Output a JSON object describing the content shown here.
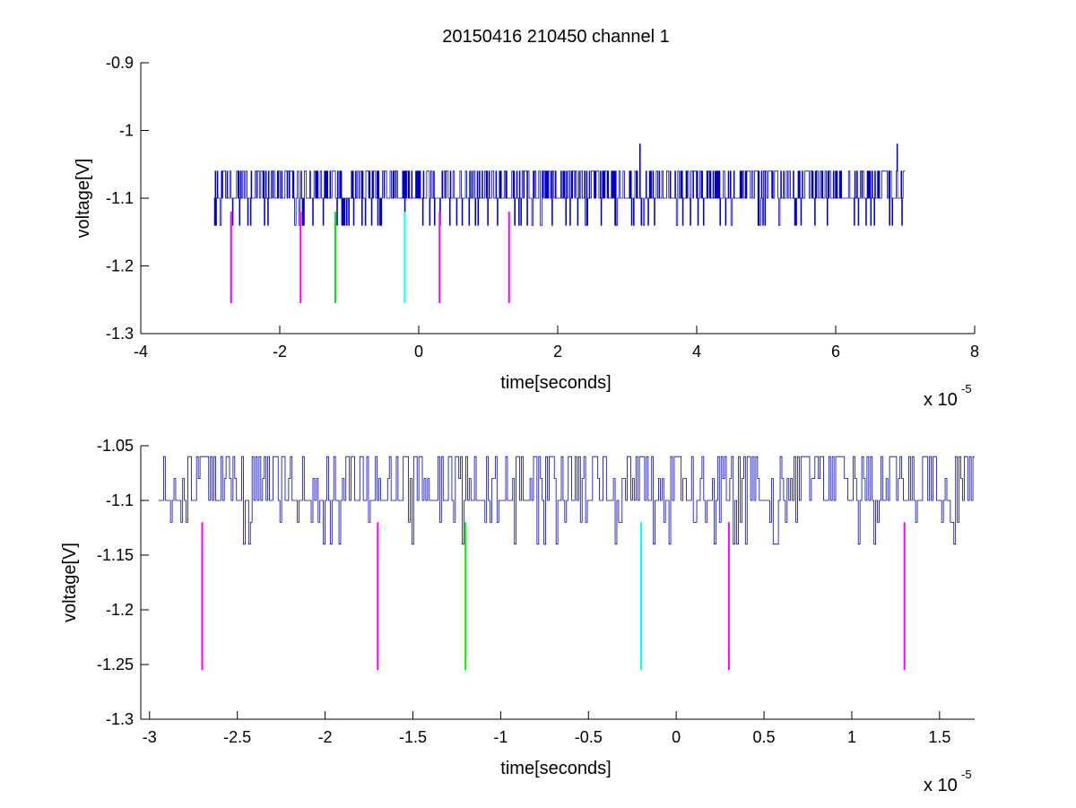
{
  "figure": {
    "title": "20150416 210450 channel 1"
  },
  "chart_data": [
    {
      "type": "line",
      "name": "top-panel",
      "title": "20150416 210450 channel 1",
      "xlabel": "time[seconds]",
      "ylabel": "voltage[V]",
      "x_multiplier_label": "x 10",
      "x_multiplier_exponent": "-5",
      "xlim": [
        -4e-05,
        8e-05
      ],
      "ylim": [
        -1.3,
        -0.9
      ],
      "x_ticks": [
        -4,
        -2,
        0,
        2,
        4,
        6,
        8
      ],
      "x_tick_labels": [
        "-4",
        "-2",
        "0",
        "2",
        "4",
        "6",
        "8"
      ],
      "y_ticks": [
        -1.3,
        -1.2,
        -1.1,
        -1.0,
        -0.9
      ],
      "y_tick_labels": [
        "-1.3",
        "-1.2",
        "-1.1",
        "-1",
        "-0.9"
      ],
      "signal": {
        "color": "#0000cc",
        "x_start": -2.95e-05,
        "x_end": 7e-05,
        "samples": 1000,
        "levels": [
          -1.06,
          -1.1,
          -1.14
        ],
        "spikes": [
          {
            "x": 3.18e-05,
            "y": -1.02
          },
          {
            "x": 6.88e-05,
            "y": -1.02
          }
        ]
      },
      "markers": [
        {
          "x": -2.7e-05,
          "y_top": -1.12,
          "y_bottom": -1.255,
          "color": "#ff00ff"
        },
        {
          "x": -1.7e-05,
          "y_top": -1.12,
          "y_bottom": -1.255,
          "color": "#ff00ff"
        },
        {
          "x": -1.2e-05,
          "y_top": -1.12,
          "y_bottom": -1.255,
          "color": "#00ee00"
        },
        {
          "x": -2e-06,
          "y_top": -1.12,
          "y_bottom": -1.255,
          "color": "#00ffff"
        },
        {
          "x": 3e-06,
          "y_top": -1.12,
          "y_bottom": -1.255,
          "color": "#ff00ff"
        },
        {
          "x": 1.3e-05,
          "y_top": -1.12,
          "y_bottom": -1.255,
          "color": "#ff00ff"
        }
      ]
    },
    {
      "type": "line",
      "name": "bottom-panel",
      "title": "",
      "xlabel": "time[seconds]",
      "ylabel": "voltage[V]",
      "x_multiplier_label": "x 10",
      "x_multiplier_exponent": "-5",
      "xlim": [
        -3.05e-05,
        1.7e-05
      ],
      "ylim": [
        -1.3,
        -1.05
      ],
      "x_ticks": [
        -3,
        -2.5,
        -2,
        -1.5,
        -1,
        -0.5,
        0,
        0.5,
        1,
        1.5
      ],
      "x_tick_labels": [
        "-3",
        "-2.5",
        "-2",
        "-1.5",
        "-1",
        "-0.5",
        "0",
        "0.5",
        "1",
        "1.5"
      ],
      "y_ticks": [
        -1.3,
        -1.25,
        -1.2,
        -1.15,
        -1.1,
        -1.05
      ],
      "y_tick_labels": [
        "-1.3",
        "-1.25",
        "-1.2",
        "-1.15",
        "-1.1",
        "-1.05"
      ],
      "signal": {
        "color": "#0000cc",
        "x_start": -2.95e-05,
        "x_end": 1.7e-05,
        "samples": 470,
        "levels": [
          -1.06,
          -1.08,
          -1.1,
          -1.12,
          -1.14
        ],
        "spikes": []
      },
      "markers": [
        {
          "x": -2.7e-05,
          "y_top": -1.12,
          "y_bottom": -1.255,
          "color": "#ff00ff"
        },
        {
          "x": -1.7e-05,
          "y_top": -1.12,
          "y_bottom": -1.255,
          "color": "#ff00ff"
        },
        {
          "x": -1.2e-05,
          "y_top": -1.12,
          "y_bottom": -1.255,
          "color": "#00ee00"
        },
        {
          "x": -2e-06,
          "y_top": -1.12,
          "y_bottom": -1.255,
          "color": "#00ffff"
        },
        {
          "x": 3e-06,
          "y_top": -1.12,
          "y_bottom": -1.255,
          "color": "#ff00ff"
        },
        {
          "x": 1.3e-05,
          "y_top": -1.12,
          "y_bottom": -1.255,
          "color": "#ff00ff"
        }
      ]
    }
  ]
}
